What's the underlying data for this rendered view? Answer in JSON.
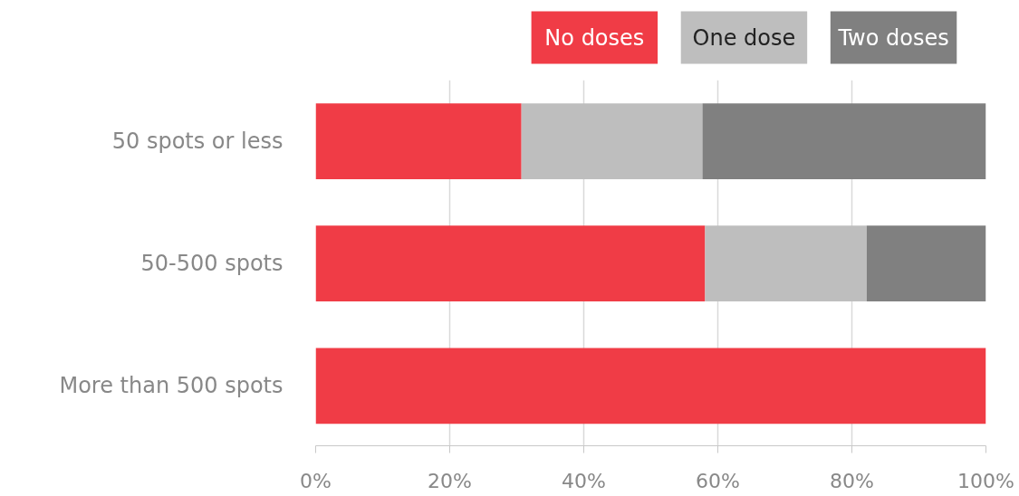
{
  "chart_data": {
    "type": "bar",
    "orientation": "horizontal",
    "stacked": true,
    "categories": [
      "50 spots or less",
      "50-500 spots",
      "More than 500 spots"
    ],
    "series": [
      {
        "name": "No doses",
        "color": "#f03c46",
        "values": [
          30.7,
          58.1,
          100
        ]
      },
      {
        "name": "One dose",
        "color": "#bebebe",
        "values": [
          27.0,
          24.1,
          0
        ]
      },
      {
        "name": "Two doses",
        "color": "#808080",
        "values": [
          42.3,
          17.8,
          0
        ]
      }
    ],
    "xlim": [
      0,
      100
    ],
    "xticks": [
      {
        "value": 0,
        "label": "0%"
      },
      {
        "value": 20,
        "label": "20%"
      },
      {
        "value": 40,
        "label": "40%"
      },
      {
        "value": 60,
        "label": "60%"
      },
      {
        "value": 80,
        "label": "80%"
      },
      {
        "value": 100,
        "label": "100%"
      }
    ],
    "grid": "x",
    "legend": "top"
  }
}
